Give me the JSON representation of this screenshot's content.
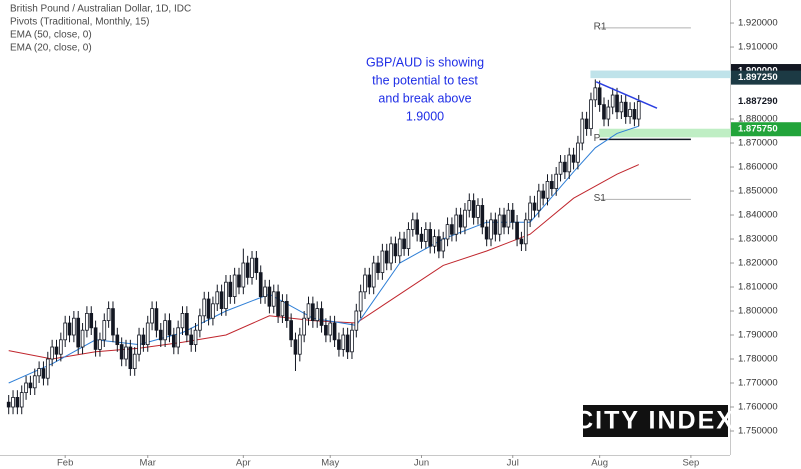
{
  "chart_data": {
    "type": "candlestick",
    "title": "British Pound / Australian Dollar, 1D, IDC",
    "subtitle": "Pivots (Traditional, Monthly, 15)",
    "annotation": [
      "GBP/AUD is showing",
      "the potential to test",
      "and break above",
      "1.9000"
    ],
    "logo": "CITY INDEX",
    "xlim": [
      -2,
      166
    ],
    "xticks": [
      {
        "value": 13,
        "label": "Feb"
      },
      {
        "value": 32,
        "label": "Mar"
      },
      {
        "value": 54,
        "label": "Apr"
      },
      {
        "value": 74,
        "label": "May"
      },
      {
        "value": 95,
        "label": "Jun"
      },
      {
        "value": 116,
        "label": "Jul"
      },
      {
        "value": 136,
        "label": "Aug"
      },
      {
        "value": 157,
        "label": "Sep"
      }
    ],
    "ylim": [
      1.74,
      1.9296
    ],
    "yticks": [
      {
        "value": 1.92,
        "label": "1.920000"
      },
      {
        "value": 1.91,
        "label": "1.910000"
      },
      {
        "value": 1.88,
        "label": "1.880000"
      },
      {
        "value": 1.87,
        "label": "1.870000"
      },
      {
        "value": 1.86,
        "label": "1.860000"
      },
      {
        "value": 1.85,
        "label": "1.850000"
      },
      {
        "value": 1.84,
        "label": "1.840000"
      },
      {
        "value": 1.83,
        "label": "1.830000"
      },
      {
        "value": 1.82,
        "label": "1.820000"
      },
      {
        "value": 1.81,
        "label": "1.810000"
      },
      {
        "value": 1.8,
        "label": "1.800000"
      },
      {
        "value": 1.79,
        "label": "1.790000"
      },
      {
        "value": 1.78,
        "label": "1.780000"
      },
      {
        "value": 1.77,
        "label": "1.770000"
      },
      {
        "value": 1.76,
        "label": "1.760000"
      },
      {
        "value": 1.75,
        "label": "1.750000"
      }
    ],
    "up_color": "#ffffff",
    "down_color": "#131722",
    "open": [
      1.762,
      1.76,
      1.764,
      1.76,
      1.766,
      1.77,
      1.768,
      1.773,
      1.776,
      1.772,
      1.78,
      1.785,
      1.782,
      1.788,
      1.795,
      1.79,
      1.797,
      1.785,
      1.792,
      1.799,
      1.793,
      1.784,
      1.788,
      1.796,
      1.801,
      1.79,
      1.786,
      1.78,
      1.785,
      1.776,
      1.782,
      1.79,
      1.786,
      1.795,
      1.801,
      1.792,
      1.788,
      1.796,
      1.79,
      1.785,
      1.793,
      1.799,
      1.79,
      1.786,
      1.792,
      1.798,
      1.805,
      1.797,
      1.803,
      1.808,
      1.801,
      1.812,
      1.806,
      1.815,
      1.81,
      1.82,
      1.814,
      1.822,
      1.816,
      1.806,
      1.81,
      1.802,
      1.808,
      1.798,
      1.804,
      1.796,
      1.788,
      1.782,
      1.79,
      1.797,
      1.803,
      1.796,
      1.801,
      1.794,
      1.79,
      1.795,
      1.788,
      1.784,
      1.79,
      1.783,
      1.792,
      1.8,
      1.808,
      1.815,
      1.81,
      1.82,
      1.816,
      1.825,
      1.82,
      1.828,
      1.823,
      1.83,
      1.826,
      1.834,
      1.838,
      1.832,
      1.829,
      1.834,
      1.827,
      1.831,
      1.825,
      1.83,
      1.836,
      1.832,
      1.84,
      1.835,
      1.842,
      1.846,
      1.839,
      1.844,
      1.835,
      1.83,
      1.838,
      1.832,
      1.84,
      1.835,
      1.842,
      1.837,
      1.83,
      1.828,
      1.838,
      1.845,
      1.842,
      1.85,
      1.847,
      1.854,
      1.851,
      1.857,
      1.862,
      1.858,
      1.865,
      1.862,
      1.87,
      1.88,
      1.876,
      1.888,
      1.893,
      1.886,
      1.88,
      1.885,
      1.89,
      1.883,
      1.887,
      1.881,
      1.884,
      1.88
    ],
    "high": [
      1.765,
      1.767,
      1.767,
      1.769,
      1.773,
      1.773,
      1.776,
      1.779,
      1.779,
      1.783,
      1.788,
      1.788,
      1.791,
      1.798,
      1.798,
      1.8,
      1.8,
      1.795,
      1.802,
      1.802,
      1.796,
      1.791,
      1.799,
      1.804,
      1.804,
      1.793,
      1.789,
      1.788,
      1.788,
      1.785,
      1.793,
      1.793,
      1.798,
      1.804,
      1.804,
      1.795,
      1.799,
      1.799,
      1.793,
      1.796,
      1.802,
      1.802,
      1.793,
      1.795,
      1.801,
      1.808,
      1.808,
      1.806,
      1.811,
      1.811,
      1.815,
      1.815,
      1.818,
      1.818,
      1.826,
      1.823,
      1.825,
      1.825,
      1.819,
      1.813,
      1.813,
      1.811,
      1.811,
      1.807,
      1.807,
      1.799,
      1.791,
      1.793,
      1.8,
      1.806,
      1.806,
      1.804,
      1.804,
      1.797,
      1.798,
      1.798,
      1.791,
      1.793,
      1.793,
      1.795,
      1.803,
      1.811,
      1.818,
      1.818,
      1.823,
      1.823,
      1.828,
      1.828,
      1.831,
      1.831,
      1.833,
      1.833,
      1.837,
      1.841,
      1.841,
      1.835,
      1.837,
      1.837,
      1.834,
      1.834,
      1.833,
      1.839,
      1.839,
      1.843,
      1.843,
      1.845,
      1.849,
      1.849,
      1.847,
      1.847,
      1.838,
      1.841,
      1.841,
      1.843,
      1.843,
      1.845,
      1.845,
      1.84,
      1.833,
      1.841,
      1.848,
      1.848,
      1.853,
      1.853,
      1.857,
      1.857,
      1.86,
      1.865,
      1.865,
      1.868,
      1.868,
      1.873,
      1.883,
      1.883,
      1.891,
      1.8965,
      1.896,
      1.889,
      1.888,
      1.893,
      1.893,
      1.89,
      1.89,
      1.887,
      1.887,
      1.89
    ],
    "low": [
      1.757,
      1.757,
      1.757,
      1.757,
      1.763,
      1.765,
      1.765,
      1.77,
      1.769,
      1.769,
      1.777,
      1.779,
      1.779,
      1.785,
      1.787,
      1.787,
      1.782,
      1.782,
      1.789,
      1.79,
      1.781,
      1.781,
      1.785,
      1.793,
      1.787,
      1.783,
      1.777,
      1.777,
      1.773,
      1.773,
      1.779,
      1.783,
      1.783,
      1.792,
      1.789,
      1.785,
      1.785,
      1.787,
      1.782,
      1.782,
      1.79,
      1.787,
      1.783,
      1.783,
      1.789,
      1.795,
      1.794,
      1.794,
      1.8,
      1.798,
      1.798,
      1.803,
      1.803,
      1.807,
      1.807,
      1.811,
      1.811,
      1.813,
      1.803,
      1.803,
      1.799,
      1.799,
      1.795,
      1.795,
      1.793,
      1.785,
      1.775,
      1.779,
      1.787,
      1.794,
      1.793,
      1.793,
      1.791,
      1.787,
      1.787,
      1.785,
      1.781,
      1.781,
      1.78,
      1.78,
      1.789,
      1.797,
      1.805,
      1.807,
      1.807,
      1.813,
      1.813,
      1.817,
      1.817,
      1.82,
      1.82,
      1.823,
      1.823,
      1.831,
      1.829,
      1.826,
      1.826,
      1.824,
      1.824,
      1.822,
      1.822,
      1.827,
      1.829,
      1.829,
      1.832,
      1.832,
      1.839,
      1.836,
      1.836,
      1.832,
      1.827,
      1.827,
      1.829,
      1.829,
      1.832,
      1.832,
      1.834,
      1.827,
      1.825,
      1.825,
      1.835,
      1.839,
      1.839,
      1.844,
      1.844,
      1.848,
      1.848,
      1.854,
      1.855,
      1.855,
      1.859,
      1.859,
      1.867,
      1.873,
      1.873,
      1.885,
      1.883,
      1.877,
      1.877,
      1.882,
      1.88,
      1.88,
      1.878,
      1.878,
      1.877,
      1.877
    ],
    "close": [
      1.76,
      1.764,
      1.76,
      1.766,
      1.77,
      1.768,
      1.773,
      1.776,
      1.772,
      1.78,
      1.785,
      1.782,
      1.788,
      1.795,
      1.79,
      1.797,
      1.785,
      1.792,
      1.799,
      1.793,
      1.784,
      1.788,
      1.796,
      1.801,
      1.79,
      1.786,
      1.78,
      1.785,
      1.776,
      1.782,
      1.79,
      1.786,
      1.795,
      1.801,
      1.792,
      1.788,
      1.796,
      1.79,
      1.785,
      1.793,
      1.799,
      1.79,
      1.786,
      1.792,
      1.798,
      1.805,
      1.797,
      1.803,
      1.808,
      1.801,
      1.812,
      1.806,
      1.815,
      1.81,
      1.82,
      1.814,
      1.822,
      1.816,
      1.806,
      1.81,
      1.802,
      1.808,
      1.798,
      1.804,
      1.796,
      1.788,
      1.782,
      1.79,
      1.797,
      1.803,
      1.796,
      1.801,
      1.794,
      1.79,
      1.795,
      1.788,
      1.784,
      1.79,
      1.783,
      1.792,
      1.8,
      1.808,
      1.815,
      1.81,
      1.82,
      1.816,
      1.825,
      1.82,
      1.828,
      1.823,
      1.83,
      1.826,
      1.834,
      1.838,
      1.832,
      1.829,
      1.834,
      1.827,
      1.831,
      1.825,
      1.83,
      1.836,
      1.832,
      1.84,
      1.835,
      1.842,
      1.846,
      1.839,
      1.844,
      1.835,
      1.83,
      1.838,
      1.832,
      1.84,
      1.835,
      1.842,
      1.837,
      1.83,
      1.828,
      1.838,
      1.845,
      1.842,
      1.85,
      1.847,
      1.854,
      1.851,
      1.857,
      1.862,
      1.858,
      1.865,
      1.862,
      1.87,
      1.88,
      1.876,
      1.888,
      1.893,
      1.886,
      1.88,
      1.885,
      1.89,
      1.883,
      1.887,
      1.881,
      1.884,
      1.88,
      1.8873
    ],
    "series": [
      {
        "name": "EMA (50, close, 0)",
        "color": "#c0262d",
        "x": [
          0,
          10,
          20,
          30,
          40,
          50,
          60,
          70,
          80,
          90,
          100,
          110,
          120,
          130,
          140,
          145
        ],
        "values": [
          1.7835,
          1.78,
          1.783,
          1.7845,
          1.787,
          1.79,
          1.798,
          1.796,
          1.795,
          1.807,
          1.819,
          1.825,
          1.832,
          1.847,
          1.857,
          1.861
        ]
      },
      {
        "name": "EMA (20, close, 0)",
        "color": "#2f7fd6",
        "x": [
          0,
          10,
          20,
          30,
          40,
          50,
          60,
          70,
          80,
          90,
          100,
          110,
          120,
          130,
          135,
          140,
          145
        ],
        "values": [
          1.77,
          1.778,
          1.788,
          1.786,
          1.791,
          1.8,
          1.807,
          1.797,
          1.794,
          1.82,
          1.83,
          1.837,
          1.837,
          1.858,
          1.868,
          1.874,
          1.877
        ]
      }
    ],
    "pivots": [
      {
        "label": "R1",
        "value": 1.918,
        "from": 136,
        "to": 157,
        "color": "#b0b0b0"
      },
      {
        "label": "P",
        "value": 1.8715,
        "from": 136,
        "to": 157,
        "color": "#131722"
      },
      {
        "label": "S1",
        "value": 1.8465,
        "from": 136,
        "to": 157,
        "color": "#b0b0b0"
      }
    ],
    "zones": [
      {
        "low": 1.89725,
        "high": 1.9,
        "from": 134,
        "color": "#bfe3ea"
      },
      {
        "low": 1.87257,
        "high": 1.87575,
        "from": 136,
        "color": "#bfeec4"
      }
    ],
    "trendline": {
      "x": [
        135.2,
        149.2
      ],
      "values": [
        1.8955,
        1.8845
      ],
      "color": "#2b3fe0"
    },
    "price_labels": [
      {
        "value": 1.9,
        "label": "1.900000",
        "background": "#131722"
      },
      {
        "value": 1.89725,
        "label": "1.897250",
        "background": "#1c3a44"
      },
      {
        "value": 1.88729,
        "label": "1.887290",
        "background": "#ffffff"
      },
      {
        "value": 1.87575,
        "label": "1.875750",
        "background": "#22a43a"
      }
    ]
  }
}
